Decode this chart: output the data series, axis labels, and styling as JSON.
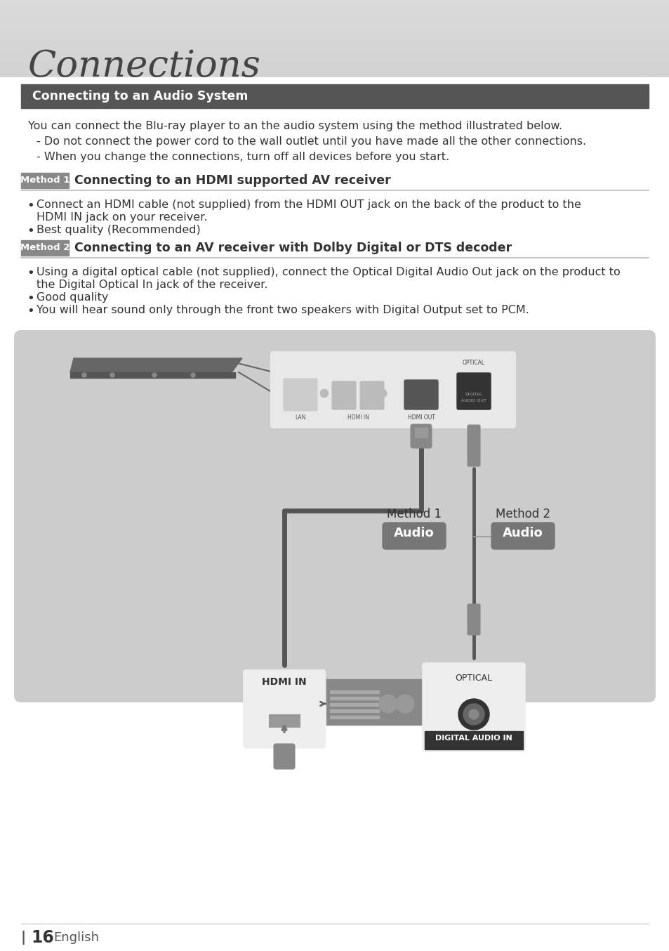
{
  "page_bg": "#ffffff",
  "title_text": "Connections",
  "title_fontsize": 38,
  "title_color": "#444444",
  "section_header_bg": "#555555",
  "section_header_text": "Connecting to an Audio System",
  "section_header_color": "#ffffff",
  "method1_badge_bg": "#888888",
  "method1_badge_text": "Method 1",
  "method1_title": "Connecting to an HDMI supported AV receiver",
  "method2_badge_bg": "#888888",
  "method2_badge_text": "Method 2",
  "method2_title": "Connecting to an AV receiver with Dolby Digital or DTS decoder",
  "intro_text": "You can connect the Blu-ray player to an the audio system using the method illustrated below.",
  "dash1": "Do not connect the power cord to the wall outlet until you have made all the other connections.",
  "dash2": "When you change the connections, turn off all devices before you start.",
  "b2a1": "Connect an HDMI cable (not supplied) from the HDMI OUT jack on the back of the product to the",
  "b2a2": "HDMI IN jack on your receiver.",
  "b2b": "Best quality (Recommended)",
  "b3a1": "Using a digital optical cable (not supplied), connect the Optical Digital Audio Out jack on the product to",
  "b3a2": "the Digital Optical In jack of the receiver.",
  "b3b": "Good quality",
  "b3c": "You will hear sound only through the front two speakers with Digital Output set to PCM.",
  "diagram_bg": "#cccccc",
  "audio_badge_bg": "#777777",
  "page_number": "16",
  "page_lang": "English",
  "divider_color": "#bbbbbb",
  "text_color": "#333333",
  "text_fontsize": 11.5
}
